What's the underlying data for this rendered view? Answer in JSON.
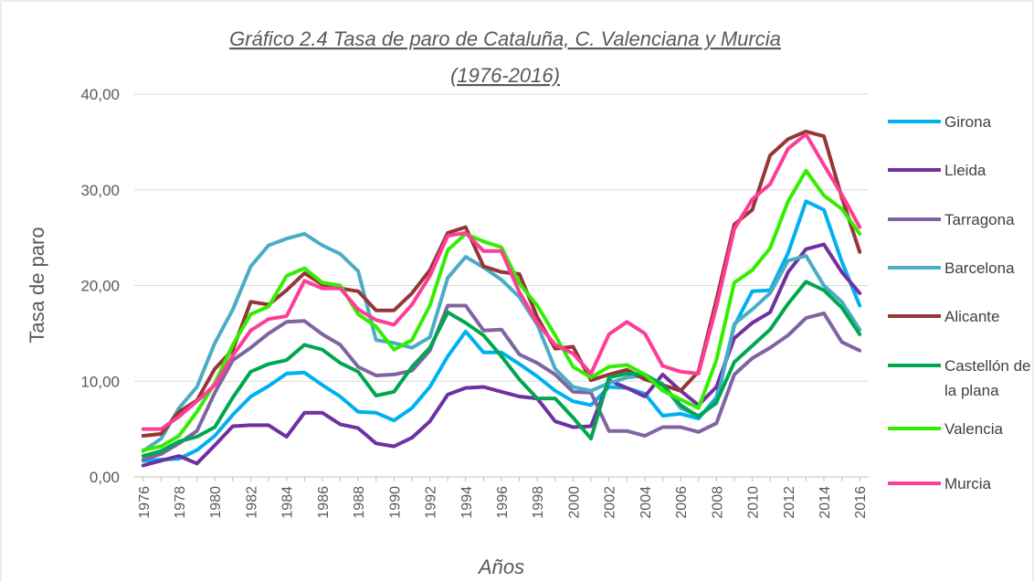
{
  "chart_data": {
    "type": "line",
    "title": "Gráfico 2.4 Tasa de paro de Cataluña, C. Valenciana y Murcia",
    "subtitle": "(1976-2016)",
    "x_label": "Años",
    "y_label": "Tasa de paro",
    "categories": [
      "1976",
      null,
      "1978",
      null,
      "1980",
      null,
      "1982",
      null,
      "1984",
      null,
      "1986",
      null,
      "1988",
      null,
      "1990",
      null,
      "1992",
      null,
      "1994",
      null,
      "1996",
      null,
      "1998",
      null,
      "2000",
      null,
      "2002",
      null,
      "2004",
      null,
      "2006",
      null,
      "2008",
      null,
      "2010",
      null,
      "2012",
      null,
      "2014",
      null,
      "2016"
    ],
    "ylim": [
      0,
      40
    ],
    "yticks": [
      {
        "value": 0,
        "label": "0,00"
      },
      {
        "value": 10,
        "label": "10,00"
      },
      {
        "value": 20,
        "label": "20,00"
      },
      {
        "value": 30,
        "label": "30,00"
      },
      {
        "value": 40,
        "label": "40,00"
      }
    ],
    "grid": true,
    "legend": "right",
    "series": [
      {
        "name": "Girona",
        "color": "#00b0f0",
        "values": [
          1.7,
          1.8,
          1.9,
          2.8,
          4.3,
          6.5,
          8.4,
          9.5,
          10.8,
          10.9,
          9.6,
          8.4,
          6.8,
          6.7,
          5.9,
          7.2,
          9.4,
          12.6,
          15.2,
          13.0,
          13.0,
          11.8,
          10.5,
          9.0,
          7.9,
          7.5,
          9.4,
          9.3,
          8.7,
          6.4,
          6.6,
          6.1,
          8.3,
          15.8,
          19.4,
          19.5,
          23.4,
          28.8,
          27.9,
          22.5,
          17.9
        ]
      },
      {
        "name": "Lleida",
        "color": "#7030a0",
        "values": [
          1.2,
          1.7,
          2.2,
          1.4,
          3.3,
          5.3,
          5.4,
          5.4,
          4.2,
          6.7,
          6.7,
          5.5,
          5.1,
          3.5,
          3.2,
          4.1,
          5.8,
          8.6,
          9.3,
          9.4,
          8.9,
          8.4,
          8.2,
          5.8,
          5.2,
          5.3,
          10.1,
          9.3,
          8.4,
          10.7,
          9.0,
          7.5,
          9.4,
          14.5,
          16.1,
          17.2,
          21.4,
          23.8,
          24.3,
          21.4,
          19.2
        ]
      },
      {
        "name": "Tarragona",
        "color": "#8064a2",
        "values": [
          1.8,
          2.4,
          3.5,
          4.8,
          8.8,
          12.2,
          13.5,
          15.0,
          16.2,
          16.3,
          14.9,
          13.8,
          11.5,
          10.6,
          10.7,
          11.1,
          13.2,
          17.9,
          17.9,
          15.3,
          15.4,
          12.8,
          11.9,
          10.7,
          8.9,
          8.8,
          4.8,
          4.8,
          4.3,
          5.2,
          5.2,
          4.7,
          5.6,
          10.7,
          12.4,
          13.5,
          14.8,
          16.6,
          17.1,
          14.1,
          13.2
        ]
      },
      {
        "name": "Barcelona",
        "color": "#4bacc6",
        "values": [
          2.7,
          4.0,
          7.2,
          9.4,
          14.0,
          17.5,
          22.0,
          24.2,
          24.9,
          25.4,
          24.2,
          23.3,
          21.5,
          14.3,
          14.0,
          13.5,
          14.6,
          20.8,
          23.0,
          21.9,
          20.6,
          18.8,
          15.9,
          11.3,
          9.4,
          9.0,
          9.8,
          10.4,
          10.6,
          9.7,
          7.2,
          6.4,
          7.7,
          16.0,
          17.5,
          19.2,
          22.6,
          23.1,
          20.0,
          18.3,
          15.4
        ]
      },
      {
        "name": "Alicante",
        "color": "#953735",
        "values": [
          4.3,
          4.5,
          6.8,
          8.0,
          11.3,
          13.3,
          18.3,
          18.0,
          19.5,
          21.3,
          20.1,
          19.7,
          19.4,
          17.4,
          17.4,
          19.2,
          21.6,
          25.5,
          26.1,
          22.0,
          21.4,
          21.2,
          16.7,
          13.4,
          13.6,
          10.1,
          10.7,
          11.2,
          10.2,
          9.6,
          9.0,
          11.0,
          18.5,
          26.4,
          27.9,
          33.6,
          35.3,
          36.1,
          35.6,
          29.2,
          23.5
        ]
      },
      {
        "name": "Castellón de la plana",
        "color": "#00a650",
        "values": [
          2.2,
          2.7,
          3.7,
          4.2,
          5.2,
          8.3,
          11.0,
          11.8,
          12.2,
          13.8,
          13.3,
          11.9,
          11.0,
          8.5,
          8.9,
          11.5,
          13.5,
          17.2,
          16.1,
          14.8,
          12.6,
          10.2,
          8.2,
          8.2,
          6.2,
          4.0,
          10.4,
          10.8,
          10.7,
          9.6,
          7.5,
          6.3,
          7.8,
          12.0,
          13.7,
          15.4,
          18.1,
          20.4,
          19.5,
          17.7,
          14.9
        ]
      },
      {
        "name": "Valencia",
        "color": "#33ee00",
        "values": [
          2.8,
          3.2,
          4.3,
          6.8,
          9.8,
          13.8,
          17.0,
          17.8,
          21.0,
          21.8,
          20.3,
          20.0,
          17.0,
          15.7,
          13.3,
          14.3,
          17.9,
          23.7,
          25.4,
          24.6,
          24.0,
          20.2,
          17.9,
          14.8,
          11.5,
          10.4,
          11.5,
          11.7,
          10.7,
          9.0,
          8.1,
          7.2,
          12.2,
          20.3,
          21.6,
          23.9,
          28.8,
          32.0,
          29.4,
          28.0,
          25.4
        ]
      },
      {
        "name": "Murcia",
        "color": "#ff3c96",
        "values": [
          5.0,
          5.0,
          6.3,
          7.9,
          9.6,
          12.7,
          15.3,
          16.5,
          16.8,
          20.5,
          19.7,
          19.7,
          17.5,
          16.4,
          15.9,
          18.0,
          21.0,
          25.2,
          25.5,
          23.6,
          23.6,
          19.3,
          16.1,
          13.8,
          12.9,
          10.8,
          14.9,
          16.2,
          15.0,
          11.6,
          11.0,
          10.8,
          17.8,
          25.9,
          29.0,
          30.6,
          34.3,
          35.8,
          32.6,
          29.5,
          26.1
        ]
      }
    ]
  }
}
